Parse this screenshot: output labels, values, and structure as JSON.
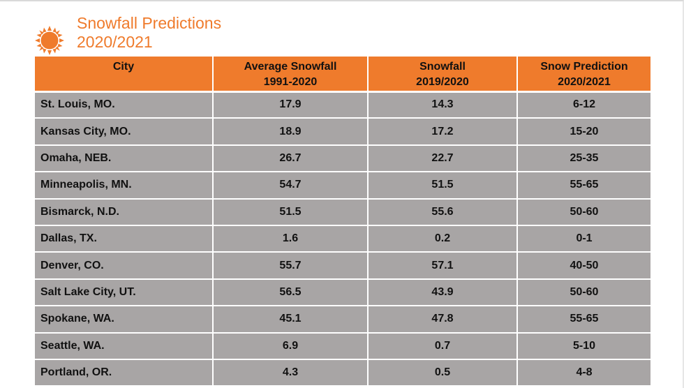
{
  "title": {
    "line1": "Snowfall Predictions",
    "line2": "2020/2021"
  },
  "icon": "sun-icon",
  "colors": {
    "accent": "#ef7b2c",
    "row_bg": "#a8a5a5"
  },
  "columns": [
    {
      "line1": "City",
      "line2": ""
    },
    {
      "line1": "Average Snowfall",
      "line2": "1991-2020"
    },
    {
      "line1": "Snowfall",
      "line2": "2019/2020"
    },
    {
      "line1": "Snow Prediction",
      "line2": "2020/2021"
    }
  ],
  "rows": [
    [
      "St. Louis, MO.",
      "17.9",
      "14.3",
      "6-12"
    ],
    [
      "Kansas City, MO.",
      "18.9",
      "17.2",
      "15-20"
    ],
    [
      "Omaha, NEB.",
      "26.7",
      "22.7",
      "25-35"
    ],
    [
      "Minneapolis, MN.",
      "54.7",
      "51.5",
      "55-65"
    ],
    [
      "Bismarck, N.D.",
      "51.5",
      "55.6",
      "50-60"
    ],
    [
      "Dallas, TX.",
      "1.6",
      "0.2",
      "0-1"
    ],
    [
      "Denver, CO.",
      "55.7",
      "57.1",
      "40-50"
    ],
    [
      "Salt Lake City, UT.",
      "56.5",
      "43.9",
      "50-60"
    ],
    [
      "Spokane, WA.",
      "45.1",
      "47.8",
      "55-65"
    ],
    [
      "Seattle, WA.",
      "6.9",
      "0.7",
      "5-10"
    ],
    [
      "Portland, OR.",
      "4.3",
      "0.5",
      "4-8"
    ]
  ]
}
